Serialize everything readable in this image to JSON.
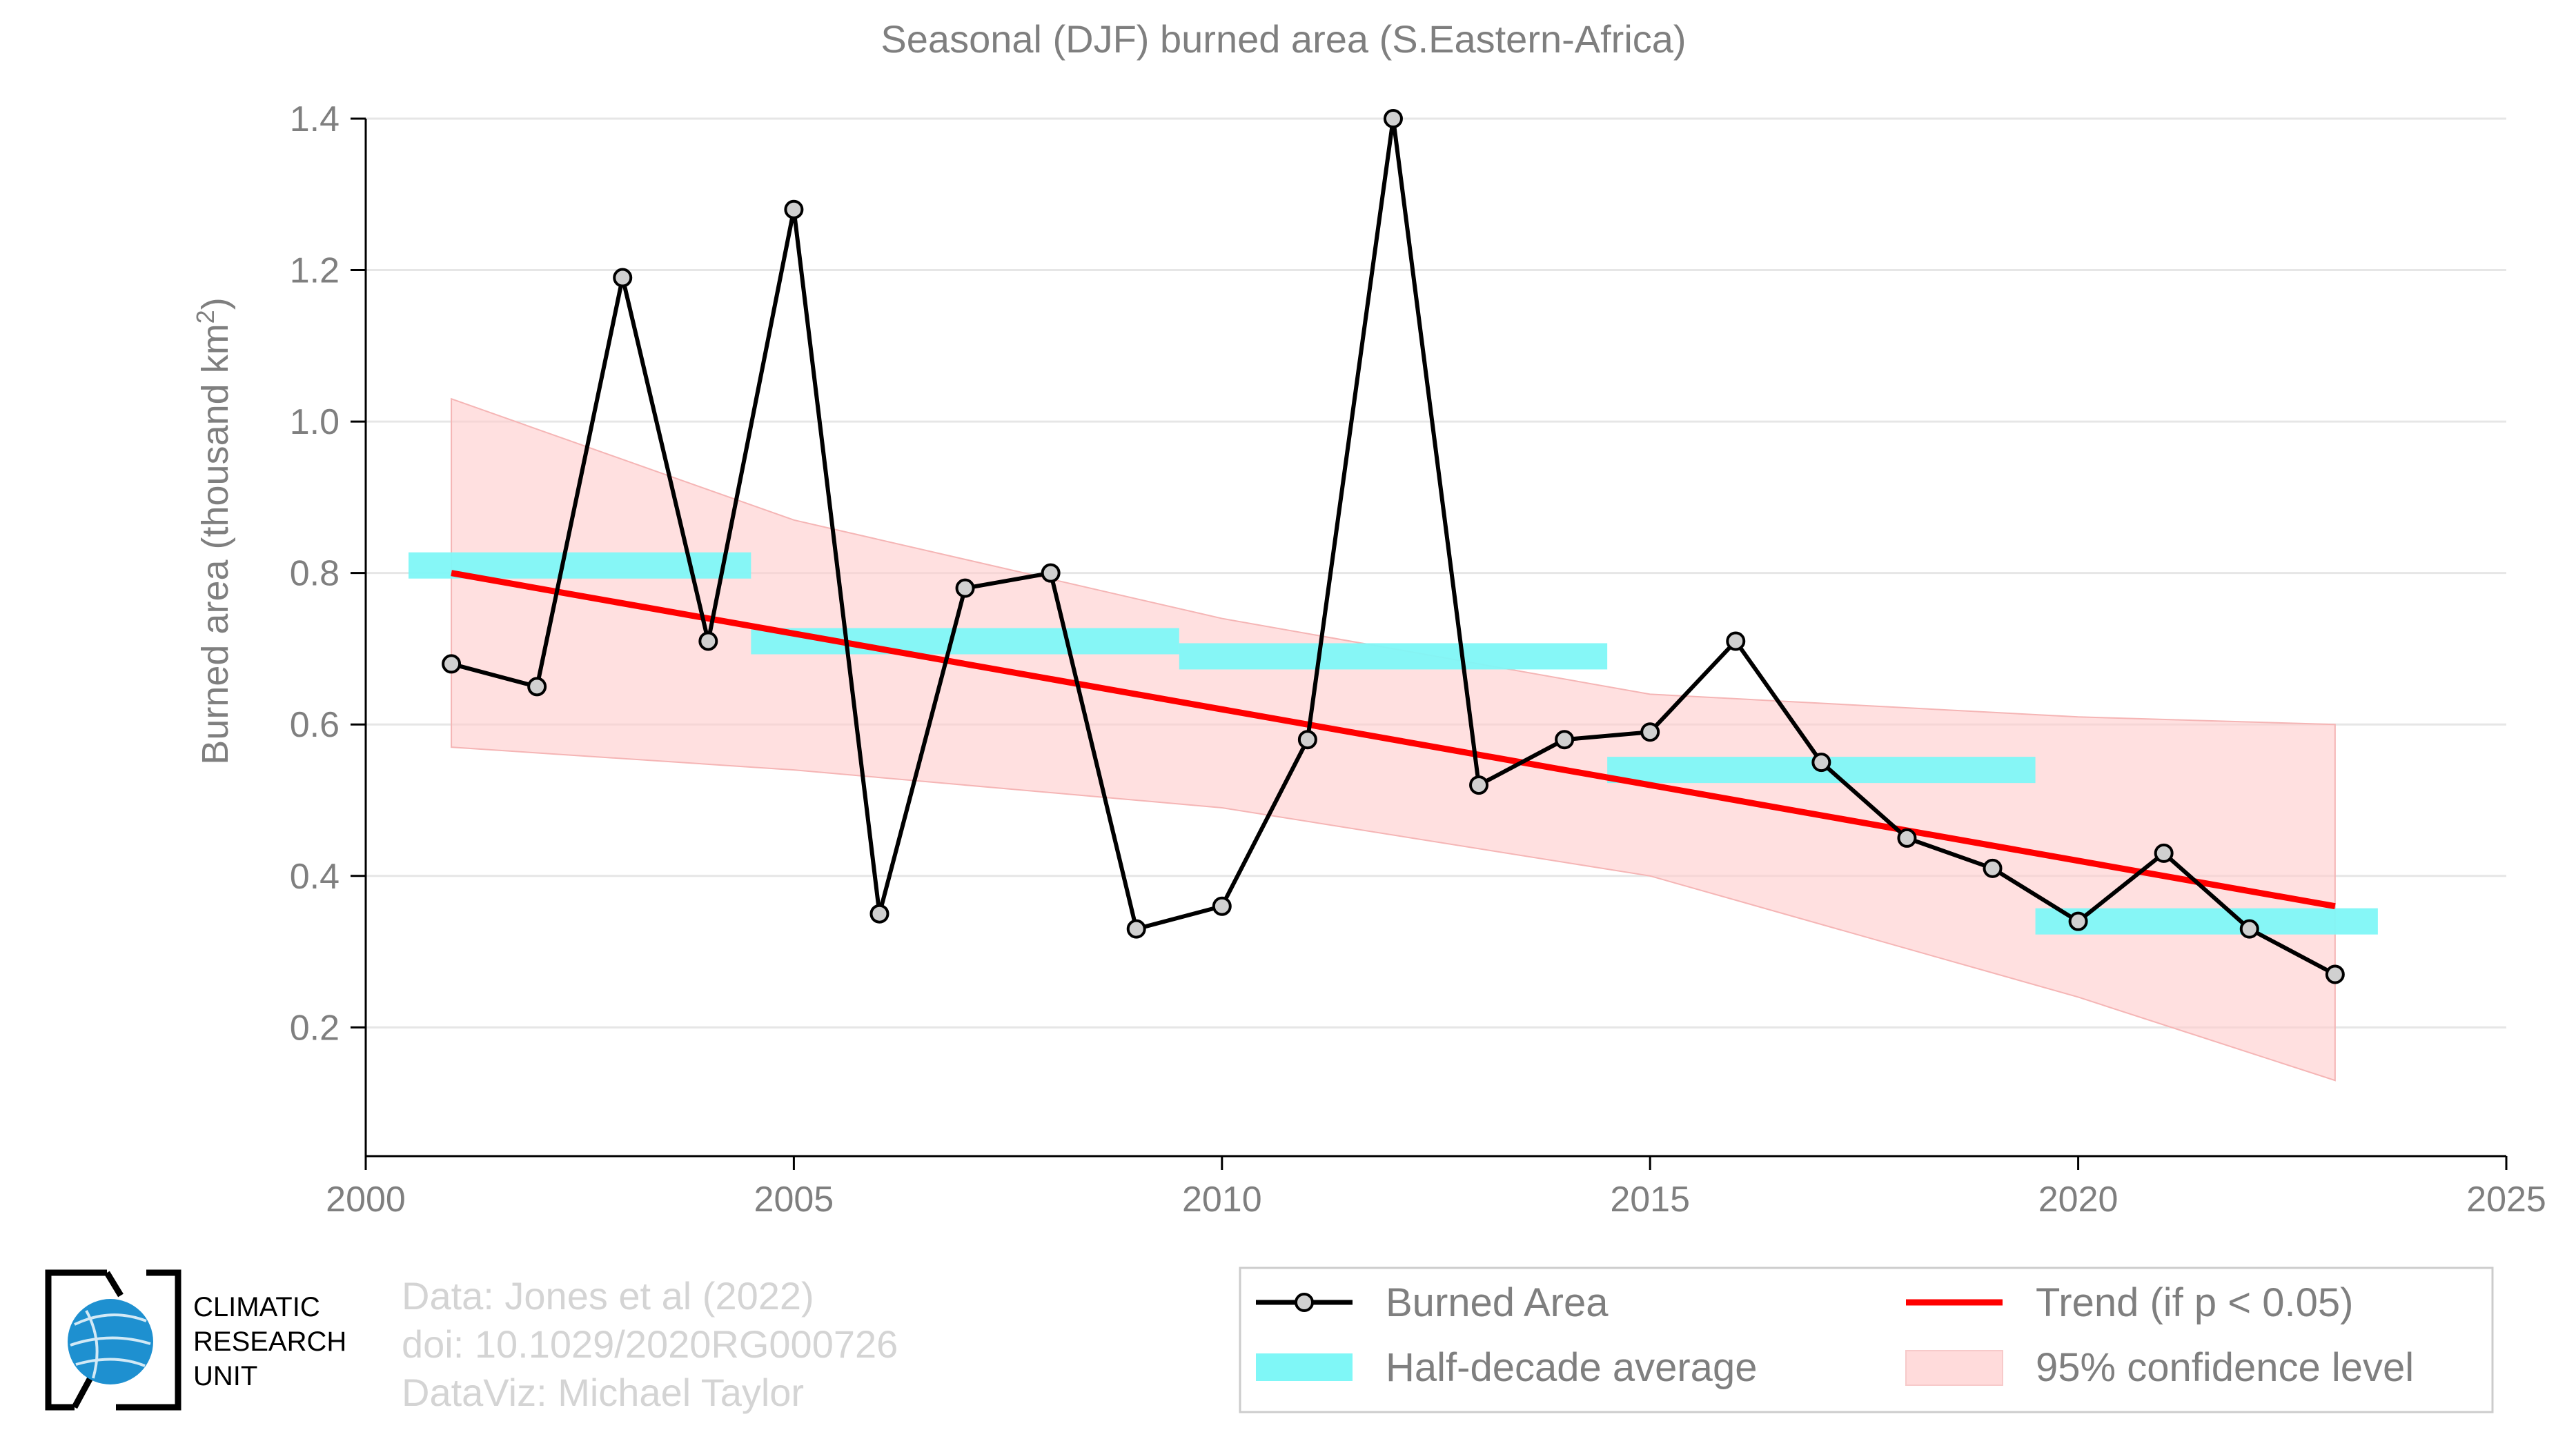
{
  "chart_data": {
    "type": "line",
    "title": "Seasonal (DJF) burned area (S.Eastern-Africa)",
    "ylabel": "Burned area (thousand km",
    "ylabel_sup": "2",
    "ylabel_end": ")",
    "xlim": [
      2000,
      2025
    ],
    "ylim": [
      0.03,
      1.4
    ],
    "x_ticks": [
      2000,
      2005,
      2010,
      2015,
      2020,
      2025
    ],
    "y_ticks": [
      0.2,
      0.4,
      0.6,
      0.8,
      1.0,
      1.2,
      1.4
    ],
    "y_tick_labels": [
      "0.2",
      "0.4",
      "0.6",
      "0.8",
      "1.0",
      "1.2",
      "1.4"
    ],
    "grid": "horizontal",
    "legend_position": "bottom",
    "series": [
      {
        "name": "Burned Area",
        "x": [
          2001,
          2002,
          2003,
          2004,
          2005,
          2006,
          2007,
          2008,
          2009,
          2010,
          2011,
          2012,
          2013,
          2014,
          2015,
          2016,
          2017,
          2018,
          2019,
          2020,
          2021,
          2022,
          2023
        ],
        "y": [
          0.68,
          0.65,
          1.19,
          0.71,
          1.28,
          0.35,
          0.78,
          0.8,
          0.33,
          0.36,
          0.58,
          1.4,
          0.52,
          0.58,
          0.59,
          0.71,
          0.55,
          0.45,
          0.41,
          0.34,
          0.43,
          0.33,
          0.27
        ]
      }
    ],
    "half_decade_average": {
      "name": "Half-decade average",
      "segments": [
        {
          "x_start": 2000.5,
          "x_end": 2004.5,
          "y": 0.81
        },
        {
          "x_start": 2004.5,
          "x_end": 2009.5,
          "y": 0.71
        },
        {
          "x_start": 2009.5,
          "x_end": 2014.5,
          "y": 0.69
        },
        {
          "x_start": 2014.5,
          "x_end": 2019.5,
          "y": 0.54
        },
        {
          "x_start": 2019.5,
          "x_end": 2023.5,
          "y": 0.34
        }
      ]
    },
    "trend": {
      "name": "Trend (if p < 0.05)",
      "x": [
        2001,
        2023
      ],
      "y": [
        0.8,
        0.36
      ]
    },
    "confidence_band": {
      "name": "95% confidence level",
      "x": [
        2001,
        2005,
        2010,
        2015,
        2020,
        2023
      ],
      "lower": [
        0.57,
        0.54,
        0.49,
        0.4,
        0.24,
        0.13
      ],
      "upper": [
        1.03,
        0.87,
        0.74,
        0.64,
        0.61,
        0.6
      ]
    }
  },
  "legend": {
    "burned_area": "Burned Area",
    "half_decade": "Half-decade average",
    "trend": "Trend (if p < 0.05)",
    "confidence": "95% confidence level"
  },
  "credits": {
    "line1": "Data: Jones et al (2022)",
    "line2": "doi: 10.1029/2020RG000726",
    "line3": "DataViz: Michael Taylor"
  },
  "logo": {
    "line1": "CLIMATIC",
    "line2": "RESEARCH",
    "line3": "UNIT"
  },
  "colors": {
    "line": "#000000",
    "marker_fill": "#d0d0d0",
    "trend": "#ff0000",
    "half_decade": "#7ff7f7",
    "confidence": "#ffcccc",
    "grid": "#e6e6e6",
    "axis": "#000000",
    "text": "#7f7f7f",
    "credit": "#d4d4d4",
    "logo_globe": "#1e90d0"
  }
}
